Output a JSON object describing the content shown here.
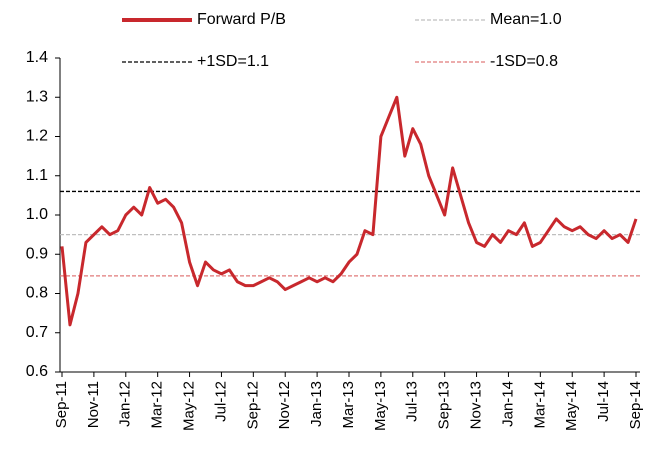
{
  "chart_data": {
    "type": "line",
    "categories": [
      "Sep-11",
      null,
      null,
      null,
      "Nov-11",
      null,
      null,
      null,
      "Jan-12",
      null,
      null,
      null,
      "Mar-12",
      null,
      null,
      null,
      "May-12",
      null,
      null,
      null,
      "Jul-12",
      null,
      null,
      null,
      "Sep-12",
      null,
      null,
      null,
      "Nov-12",
      null,
      null,
      null,
      "Jan-13",
      null,
      null,
      null,
      "Mar-13",
      null,
      null,
      null,
      "May-13",
      null,
      null,
      null,
      "Jul-13",
      null,
      null,
      null,
      "Sep-13",
      null,
      null,
      null,
      "Nov-13",
      null,
      null,
      null,
      "Jan-14",
      null,
      null,
      null,
      "Mar-14",
      null,
      null,
      null,
      "May-14",
      null,
      null,
      null,
      "Jul-14",
      null,
      null,
      null,
      "Sep-14"
    ],
    "series": [
      {
        "name": "Forward P/B",
        "color": "#c8282d",
        "values": [
          0.92,
          0.72,
          0.8,
          0.93,
          0.95,
          0.97,
          0.95,
          0.96,
          1.0,
          1.02,
          1.0,
          1.07,
          1.03,
          1.04,
          1.02,
          0.98,
          0.88,
          0.82,
          0.88,
          0.86,
          0.85,
          0.86,
          0.83,
          0.82,
          0.82,
          0.83,
          0.84,
          0.83,
          0.81,
          0.82,
          0.83,
          0.84,
          0.83,
          0.84,
          0.83,
          0.85,
          0.88,
          0.9,
          0.96,
          0.95,
          1.2,
          1.25,
          1.3,
          1.15,
          1.22,
          1.18,
          1.1,
          1.05,
          1.0,
          1.12,
          1.05,
          0.98,
          0.93,
          0.92,
          0.95,
          0.93,
          0.96,
          0.95,
          0.98,
          0.92,
          0.93,
          0.96,
          0.99,
          0.97,
          0.96,
          0.97,
          0.95,
          0.94,
          0.96,
          0.94,
          0.95,
          0.93,
          0.99
        ]
      }
    ],
    "reference_lines": [
      {
        "name": "Mean=1.0",
        "value": 0.95,
        "color": "#bfbfbf"
      },
      {
        "name": "+1SD=1.1",
        "value": 1.06,
        "color": "#000000"
      },
      {
        "name": "-1SD=0.8",
        "value": 0.845,
        "color": "#e07a7a"
      }
    ],
    "ylim": [
      0.6,
      1.4
    ],
    "yticks": [
      0.6,
      0.7,
      0.8,
      0.9,
      {
        "value": 1.0,
        "label": "1.0"
      },
      1.1,
      1.2,
      1.3,
      1.4
    ]
  }
}
